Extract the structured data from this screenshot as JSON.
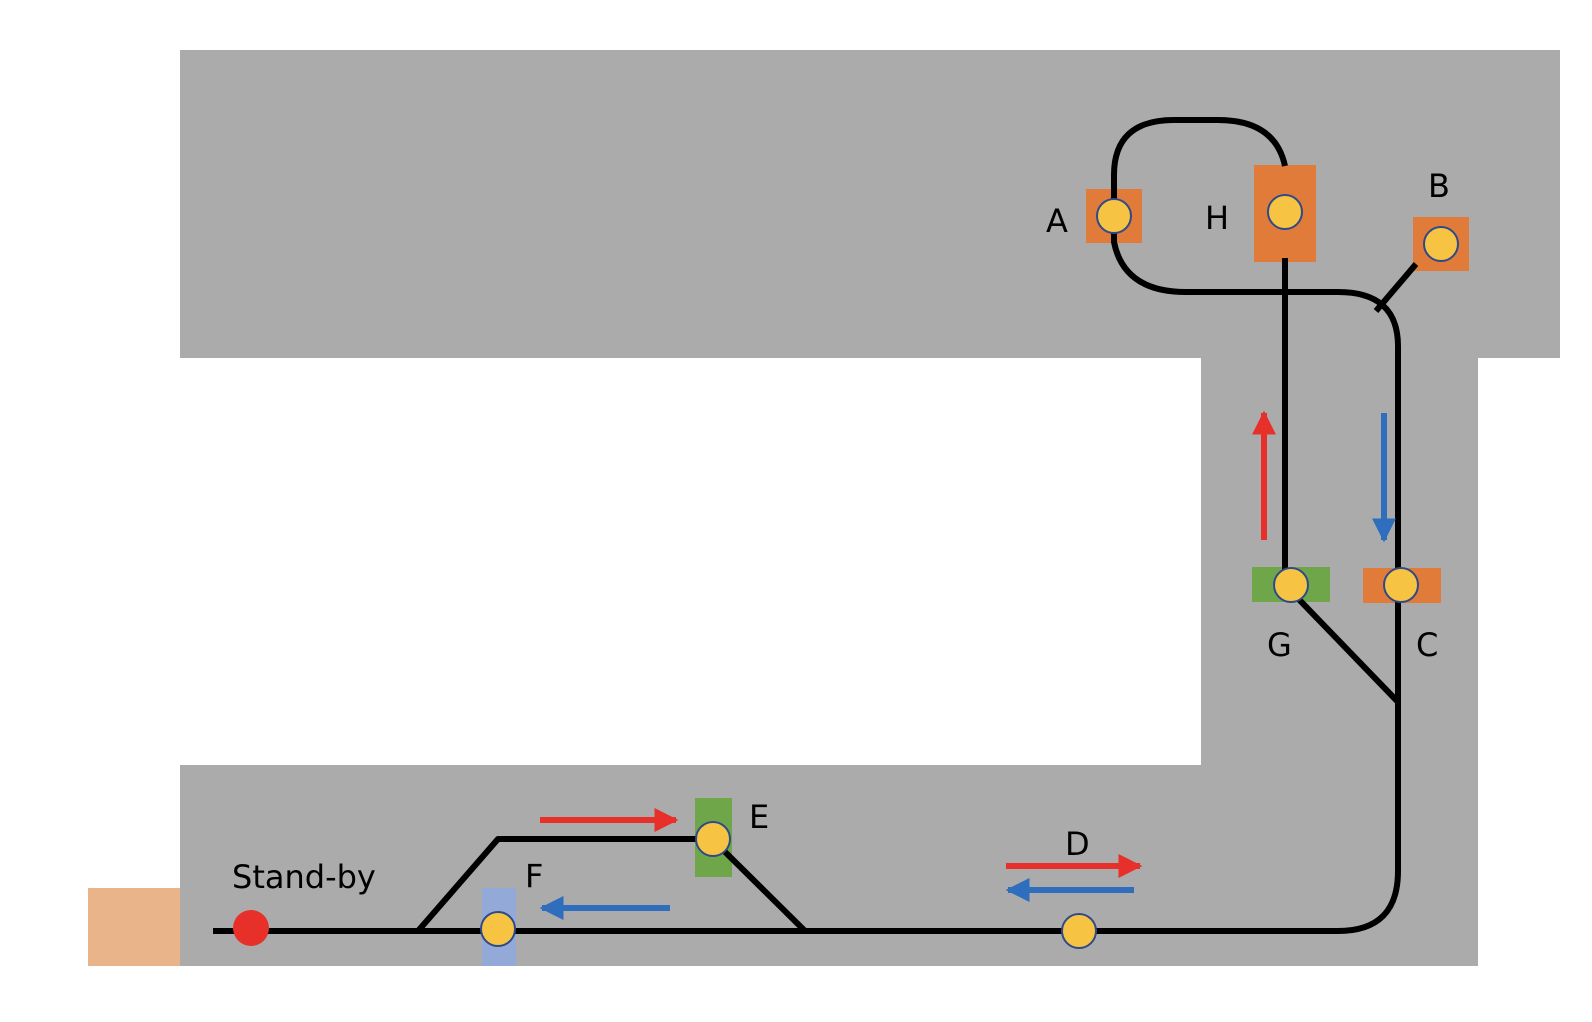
{
  "labels": {
    "standby": "Stand-by",
    "a": "A",
    "b": "B",
    "c": "C",
    "d": "D",
    "e": "E",
    "f": "F",
    "g": "G",
    "h": "H"
  },
  "colors": {
    "floor": "#ababab",
    "track": "#000000",
    "stop": "#f6c343",
    "standby_dot": "#e8302a",
    "orange_zone": "#e07b39",
    "green_zone": "#70a64a",
    "blue_zone": "#93a9d8",
    "entry_zone": "#e9b48a",
    "arrow_red": "#e8302a",
    "arrow_blue": "#2f6dbd"
  }
}
